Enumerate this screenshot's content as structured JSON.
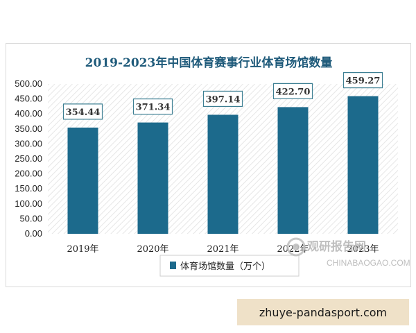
{
  "chart_data": {
    "type": "bar",
    "title": "2019-2023年中国体育赛事行业体育场馆数量",
    "categories": [
      "2019年",
      "2020年",
      "2021年",
      "2022年",
      "2023年"
    ],
    "series": [
      {
        "name": "体育场馆数量（万个）",
        "values": [
          354.44,
          371.34,
          397.14,
          422.7,
          459.27
        ]
      }
    ],
    "value_labels": [
      "354.44",
      "371.34",
      "397.14",
      "422.70",
      "459.27"
    ],
    "y_ticks": [
      "0.00",
      "50.00",
      "100.00",
      "150.00",
      "200.00",
      "250.00",
      "300.00",
      "350.00",
      "400.00",
      "450.00",
      "500.00"
    ],
    "ylim": [
      0,
      500
    ],
    "legend_position": "bottom",
    "colors": {
      "bar": "#1c6a8c",
      "title": "#1e5a7a"
    }
  },
  "watermark": {
    "name": "观研报告网",
    "domain": "CHINABAOGAO.COM"
  },
  "banner": {
    "text": "zhuye-pandasport.com"
  }
}
